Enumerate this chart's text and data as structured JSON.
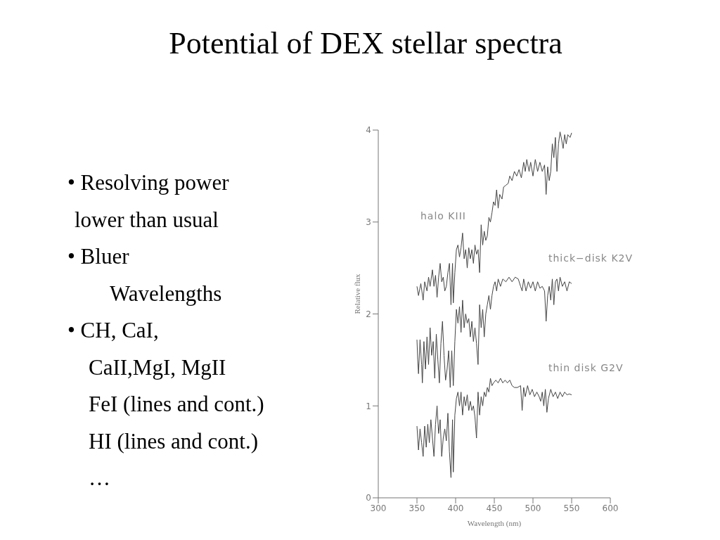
{
  "chart_data": {
    "type": "line",
    "title": "Potential of DEX stellar spectra",
    "xlabel": "Wavelength (nm)",
    "ylabel": "Relative flux",
    "xlim": [
      300,
      600
    ],
    "xticks": [
      300,
      350,
      400,
      450,
      500,
      550,
      600
    ],
    "ylim": [
      0,
      4
    ],
    "yticks": [
      0,
      1,
      2,
      3,
      4
    ],
    "grid": false,
    "legend": false,
    "marker": "none",
    "line_style": "solid",
    "annotations": [
      "• Resolving power",
      "lower than usual",
      "• Bluer",
      "Wavelengths",
      "• CH, CaI,",
      "CaII,MgI, MgII",
      "FeI (lines and cont.)",
      "HI (lines and cont.)",
      "…"
    ],
    "series": [
      {
        "name": "halo KIII",
        "color": "#444444",
        "x": [
          350,
          352,
          355,
          358,
          360,
          363,
          365,
          367,
          370,
          372,
          374,
          376,
          378,
          380,
          382,
          384,
          386,
          388,
          390,
          392,
          394,
          396,
          397,
          399,
          401,
          403,
          405,
          407,
          409,
          411,
          413,
          415,
          417,
          419,
          421,
          423,
          425,
          427,
          429,
          431,
          433,
          435,
          437,
          439,
          441,
          443,
          445,
          447,
          449,
          451,
          453,
          455,
          457,
          460,
          462,
          465,
          468,
          470,
          473,
          476,
          479,
          482,
          485,
          488,
          490,
          492,
          495,
          497,
          500,
          503,
          506,
          509,
          512,
          515,
          517,
          519,
          521,
          523,
          525,
          527,
          529,
          531,
          533,
          535,
          537,
          539,
          541,
          543,
          545,
          548,
          550
        ],
        "values": [
          2.3,
          2.2,
          2.33,
          2.15,
          2.35,
          2.25,
          2.4,
          2.3,
          2.48,
          2.3,
          2.42,
          2.18,
          2.4,
          2.55,
          2.35,
          2.4,
          2.25,
          2.3,
          2.45,
          2.55,
          2.1,
          2.55,
          2.12,
          2.45,
          2.7,
          2.75,
          2.62,
          2.72,
          2.88,
          2.6,
          2.7,
          2.5,
          2.72,
          2.6,
          2.7,
          2.55,
          2.75,
          2.65,
          2.7,
          2.45,
          2.97,
          2.75,
          2.9,
          2.8,
          2.85,
          3.05,
          3.0,
          3.1,
          3.22,
          3.18,
          3.35,
          3.15,
          3.3,
          3.25,
          3.38,
          3.4,
          3.42,
          3.5,
          3.45,
          3.55,
          3.5,
          3.57,
          3.48,
          3.65,
          3.55,
          3.68,
          3.55,
          3.65,
          3.5,
          3.68,
          3.55,
          3.65,
          3.55,
          3.62,
          3.3,
          3.6,
          3.45,
          3.55,
          3.85,
          3.7,
          3.92,
          3.55,
          3.85,
          3.98,
          3.9,
          3.8,
          3.95,
          3.85,
          3.95,
          3.92,
          3.97
        ]
      },
      {
        "name": "thick−disk K2V",
        "color": "#444444",
        "x": [
          350,
          351,
          352,
          354,
          356,
          357,
          359,
          361,
          363,
          365,
          367,
          369,
          371,
          373,
          375,
          377,
          379,
          381,
          383,
          385,
          387,
          389,
          391,
          393,
          395,
          397,
          399,
          401,
          403,
          405,
          407,
          409,
          411,
          413,
          415,
          417,
          419,
          421,
          423,
          425,
          427,
          429,
          431,
          433,
          435,
          437,
          439,
          441,
          443,
          445,
          447,
          449,
          451,
          453,
          455,
          458,
          461,
          465,
          469,
          473,
          477,
          481,
          484,
          486,
          488,
          491,
          494,
          497,
          500,
          503,
          506,
          509,
          512,
          515,
          517,
          519,
          521,
          523,
          525,
          527,
          529,
          531,
          533,
          535,
          538,
          541,
          544,
          547,
          550
        ],
        "values": [
          1.72,
          1.5,
          1.35,
          1.72,
          1.45,
          1.25,
          1.7,
          1.4,
          1.75,
          1.45,
          1.85,
          1.55,
          1.7,
          1.3,
          1.78,
          1.5,
          1.25,
          1.68,
          1.92,
          1.55,
          1.28,
          1.4,
          1.6,
          1.2,
          1.6,
          1.22,
          1.7,
          2.05,
          1.9,
          2.08,
          1.8,
          2.15,
          1.85,
          2.0,
          1.9,
          1.95,
          1.75,
          1.92,
          1.7,
          1.85,
          1.68,
          1.45,
          2.1,
          1.85,
          2.05,
          1.75,
          2.0,
          2.1,
          2.2,
          2.05,
          2.2,
          2.3,
          2.35,
          2.25,
          2.38,
          2.3,
          2.38,
          2.35,
          2.4,
          2.35,
          2.4,
          2.38,
          2.3,
          2.25,
          2.38,
          2.25,
          2.35,
          2.28,
          2.35,
          2.25,
          2.35,
          2.28,
          2.3,
          2.25,
          1.92,
          2.2,
          2.3,
          2.15,
          2.38,
          2.1,
          2.35,
          2.38,
          2.25,
          2.4,
          2.3,
          2.35,
          2.25,
          2.35,
          2.33
        ]
      },
      {
        "name": "thin disk G2V",
        "color": "#444444",
        "x": [
          350,
          352,
          354,
          356,
          358,
          360,
          362,
          364,
          366,
          368,
          370,
          372,
          374,
          376,
          378,
          380,
          382,
          384,
          386,
          388,
          390,
          392,
          394,
          396,
          397,
          399,
          401,
          403,
          405,
          407,
          409,
          411,
          413,
          415,
          417,
          419,
          421,
          423,
          425,
          427,
          429,
          431,
          433,
          435,
          437,
          439,
          441,
          443,
          445,
          447,
          449,
          452,
          455,
          458,
          461,
          464,
          467,
          470,
          473,
          476,
          480,
          484,
          486,
          488,
          490,
          493,
          496,
          499,
          502,
          505,
          508,
          510,
          512,
          514,
          516,
          518,
          520,
          523,
          526,
          529,
          532,
          535,
          538,
          541,
          544,
          547,
          550
        ],
        "values": [
          0.78,
          0.52,
          0.75,
          0.6,
          0.45,
          0.78,
          0.55,
          0.8,
          0.6,
          0.85,
          0.65,
          0.45,
          0.8,
          1.0,
          0.7,
          0.85,
          0.45,
          0.65,
          0.75,
          0.62,
          0.92,
          0.5,
          0.22,
          0.85,
          0.28,
          0.9,
          1.08,
          1.15,
          1.0,
          1.15,
          0.9,
          1.1,
          1.0,
          1.12,
          0.95,
          1.05,
          0.95,
          1.0,
          0.88,
          0.65,
          1.15,
          0.9,
          1.1,
          1.0,
          1.15,
          1.1,
          1.2,
          1.15,
          1.3,
          1.22,
          1.25,
          1.28,
          1.25,
          1.3,
          1.25,
          1.28,
          1.25,
          1.28,
          1.22,
          1.2,
          1.2,
          1.22,
          0.95,
          1.2,
          1.1,
          1.22,
          1.12,
          1.18,
          1.1,
          1.15,
          1.1,
          1.05,
          1.15,
          1.0,
          1.18,
          0.93,
          1.08,
          1.18,
          1.1,
          1.15,
          1.08,
          1.15,
          1.1,
          1.15,
          1.12,
          1.13,
          1.12
        ]
      }
    ]
  }
}
